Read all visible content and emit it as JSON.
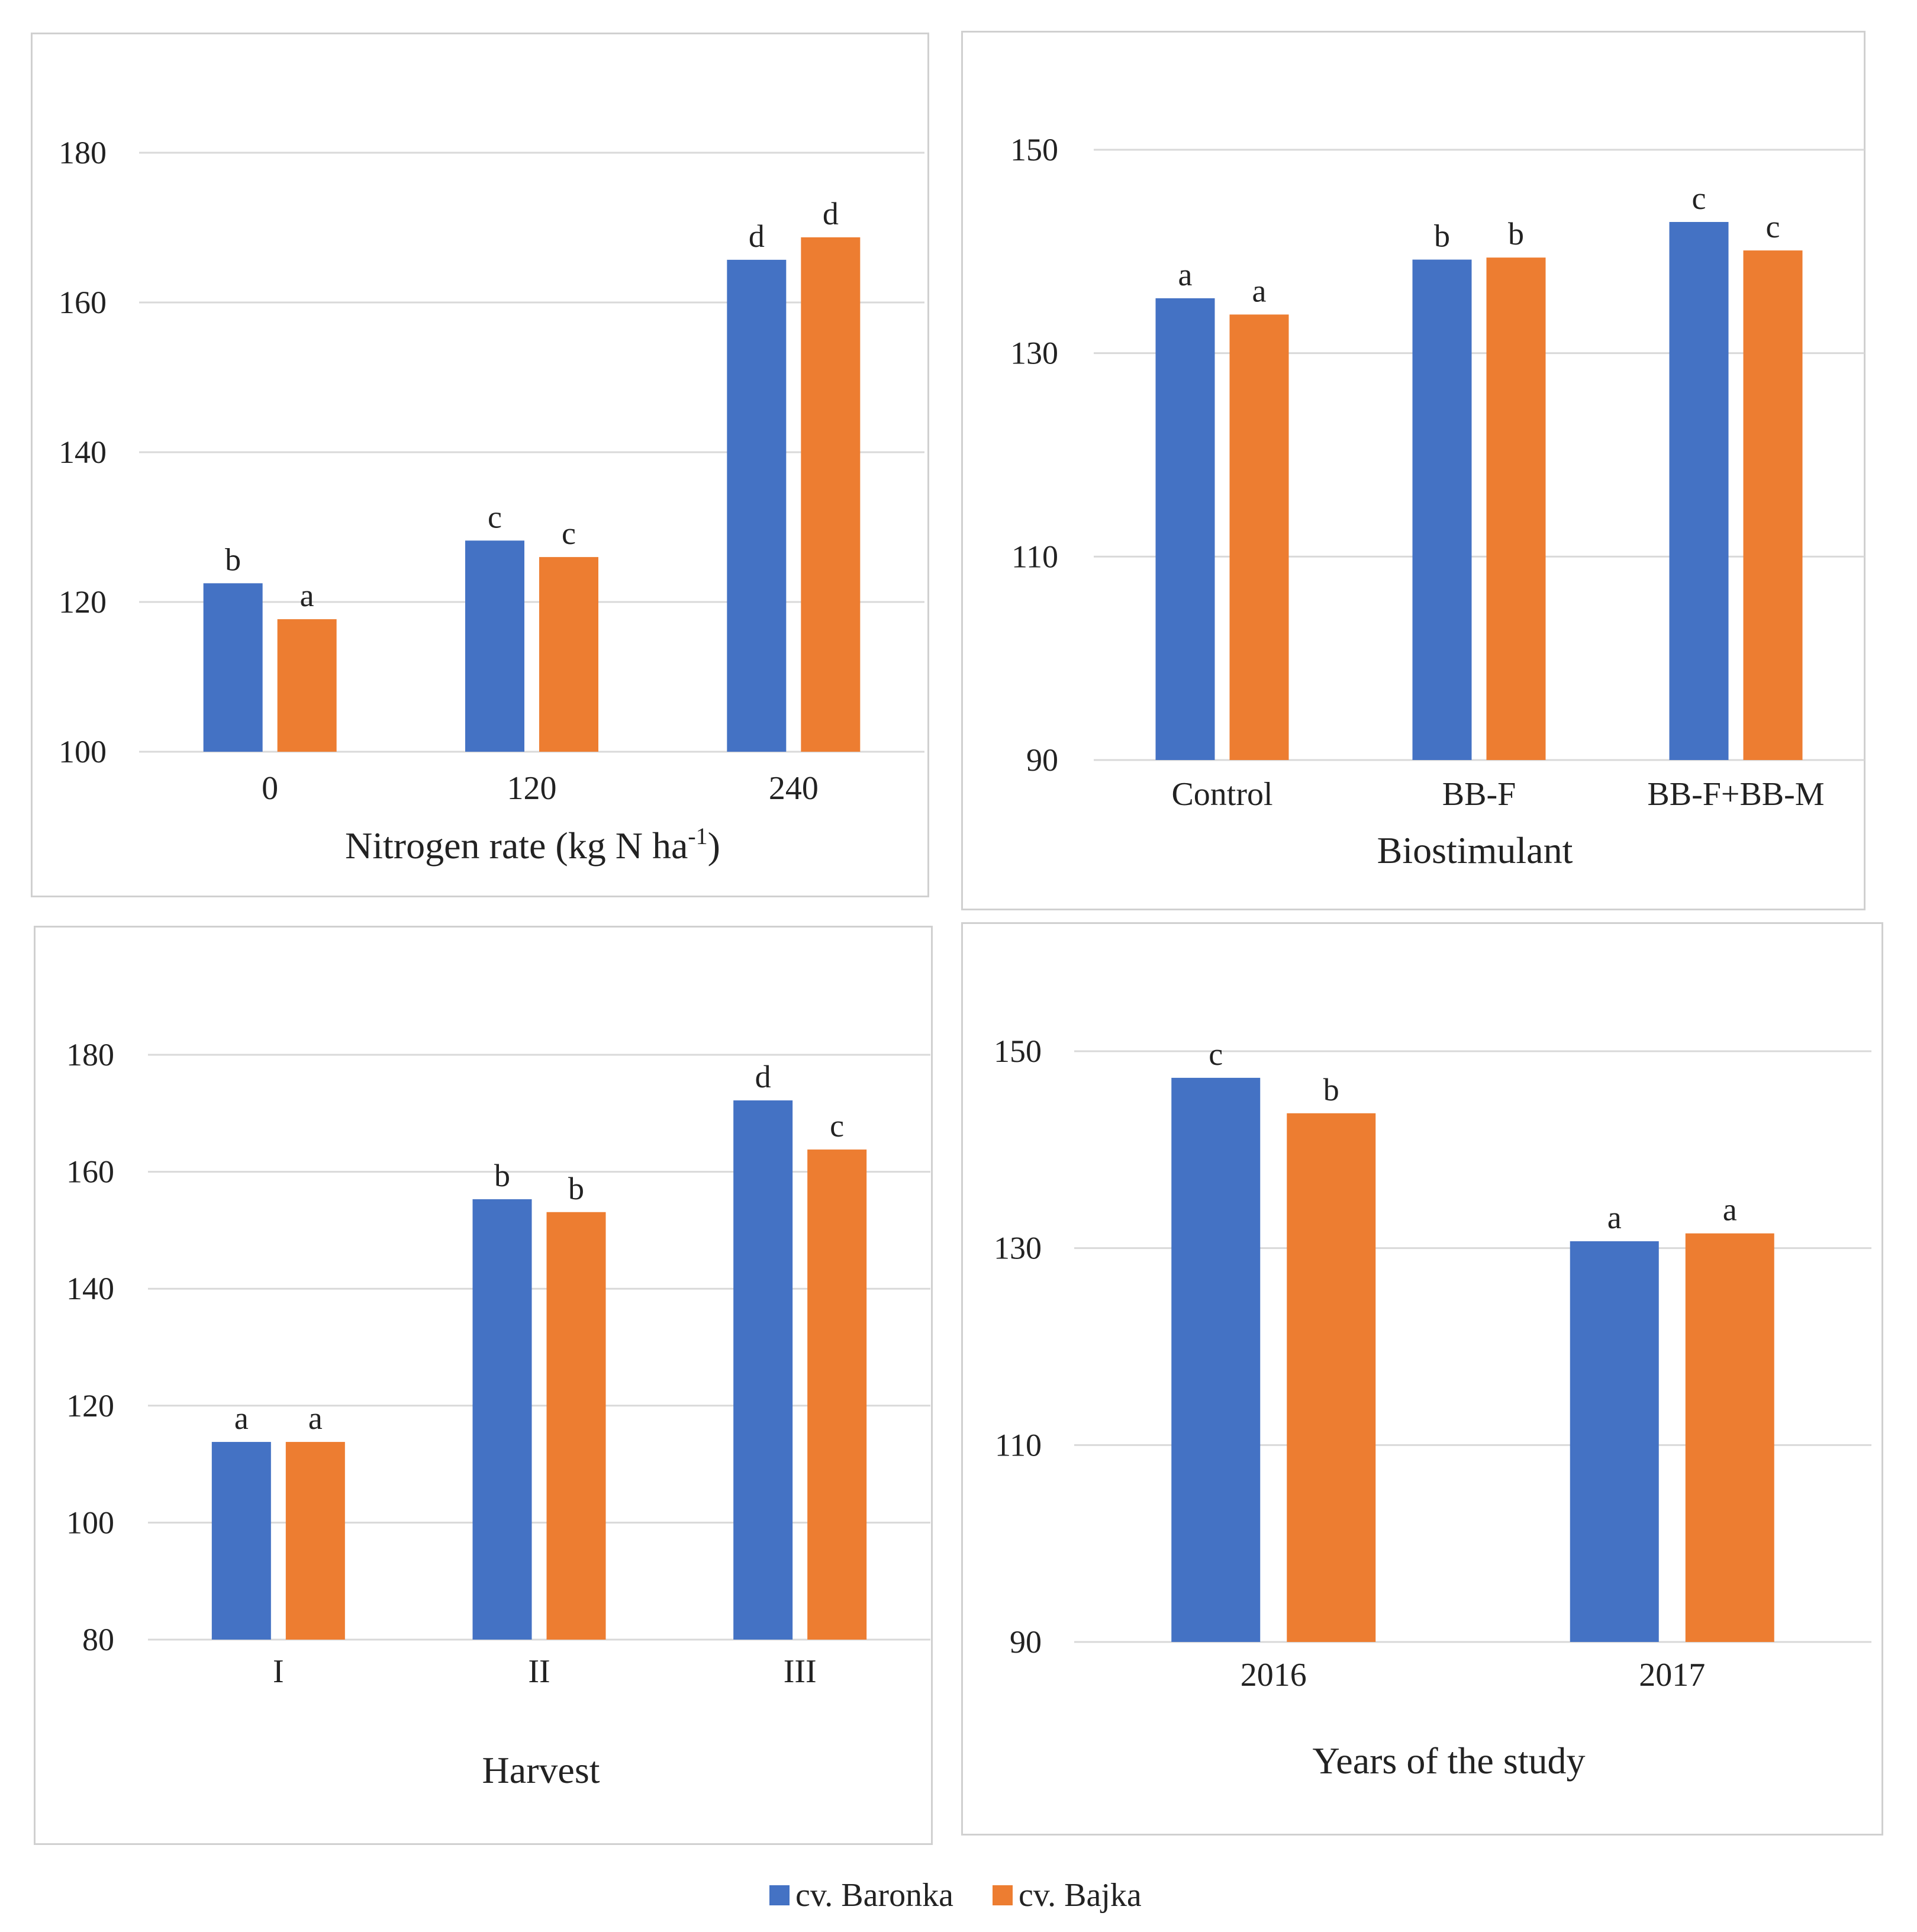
{
  "colors": {
    "baronka": "#4472C4",
    "bajka": "#ED7D31",
    "grid": "#d9d9d9",
    "text": "#222222"
  },
  "legend": [
    {
      "label": "cv. Baronka",
      "color": "#4472C4"
    },
    {
      "label": "cv. Bajka",
      "color": "#ED7D31"
    }
  ],
  "chart_data": [
    {
      "type": "bar",
      "xlabel": "Nitrogen rate (kg N ha",
      "xlabel_sup": "-1",
      "xlabel_end": ")",
      "categories": [
        "0",
        "120",
        "240"
      ],
      "yticks": [
        100,
        120,
        140,
        160,
        180
      ],
      "ylim": [
        100,
        196
      ],
      "series": [
        {
          "name": "cv. Baronka",
          "values": [
            122.5,
            128.2,
            165.7
          ],
          "letters": [
            "b",
            "c",
            "d"
          ]
        },
        {
          "name": "cv. Bajka",
          "values": [
            117.7,
            126.0,
            168.7
          ],
          "letters": [
            "a",
            "c",
            "d"
          ]
        }
      ]
    },
    {
      "type": "bar",
      "xlabel": "Biostimulant",
      "categories": [
        "Control",
        "BB-F",
        "BB-F+BB-M"
      ],
      "yticks": [
        90,
        110,
        130,
        150
      ],
      "ylim": [
        90,
        152
      ],
      "series": [
        {
          "name": "cv. Baronka",
          "values": [
            135.4,
            139.2,
            142.9
          ],
          "letters": [
            "a",
            "b",
            "c"
          ]
        },
        {
          "name": "cv. Bajka",
          "values": [
            133.8,
            139.4,
            140.1
          ],
          "letters": [
            "a",
            "b",
            "c"
          ]
        }
      ]
    },
    {
      "type": "bar",
      "xlabel": "Harvest",
      "categories": [
        "I",
        "II",
        "III"
      ],
      "yticks": [
        80,
        100,
        120,
        140,
        160,
        180
      ],
      "ylim": [
        80,
        191
      ],
      "series": [
        {
          "name": "cv. Baronka",
          "values": [
            113.8,
            155.3,
            172.2
          ],
          "letters": [
            "a",
            "b",
            "d"
          ]
        },
        {
          "name": "cv. Bajka",
          "values": [
            113.8,
            153.1,
            163.8
          ],
          "letters": [
            "a",
            "b",
            "c"
          ]
        }
      ]
    },
    {
      "type": "bar",
      "xlabel": "Years of the study",
      "categories": [
        "2016",
        "2017"
      ],
      "yticks": [
        90,
        110,
        130,
        150
      ],
      "ylim": [
        90,
        152
      ],
      "series": [
        {
          "name": "cv. Baronka",
          "values": [
            147.3,
            130.7
          ],
          "letters": [
            "c",
            "a"
          ]
        },
        {
          "name": "cv. Bajka",
          "values": [
            143.7,
            131.5
          ],
          "letters": [
            "b",
            "a"
          ]
        }
      ]
    }
  ]
}
